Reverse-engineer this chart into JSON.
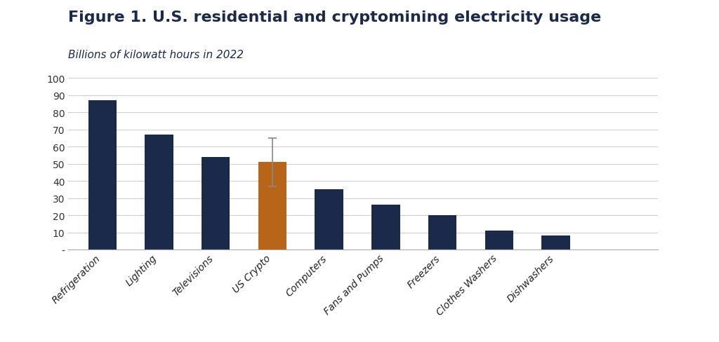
{
  "title": "Figure 1. U.S. residential and cryptomining electricity usage",
  "subtitle": "Billions of kilowatt hours in 2022",
  "categories": [
    "Refrigeration",
    "Lighting",
    "Televisions",
    "US Crypto",
    "Computers",
    "Fans and Pumps",
    "Freezers",
    "Clothes Washers",
    "Dishwashers"
  ],
  "values": [
    87,
    67,
    54,
    51,
    35,
    26,
    20,
    11,
    8
  ],
  "bar_colors": [
    "#1b2a4a",
    "#1b2a4a",
    "#1b2a4a",
    "#b8651a",
    "#1b2a4a",
    "#1b2a4a",
    "#1b2a4a",
    "#1b2a4a",
    "#1b2a4a"
  ],
  "error_bar_index": 3,
  "error_bar_lower": 14,
  "error_bar_upper": 14,
  "ylim": [
    0,
    100
  ],
  "yticks": [
    0,
    10,
    20,
    30,
    40,
    50,
    60,
    70,
    80,
    90,
    100
  ],
  "ytick_labels": [
    "-",
    "10",
    "20",
    "30",
    "40",
    "50",
    "60",
    "70",
    "80",
    "90",
    "100"
  ],
  "background_color": "#ffffff",
  "grid_color": "#cccccc",
  "title_color": "#1b2a4a",
  "subtitle_color": "#1b2a4a",
  "title_fontsize": 16,
  "subtitle_fontsize": 11,
  "tick_label_fontsize": 10,
  "bar_width": 0.5,
  "error_bar_color": "#888888",
  "error_bar_capsize": 4,
  "error_bar_linewidth": 1.2
}
